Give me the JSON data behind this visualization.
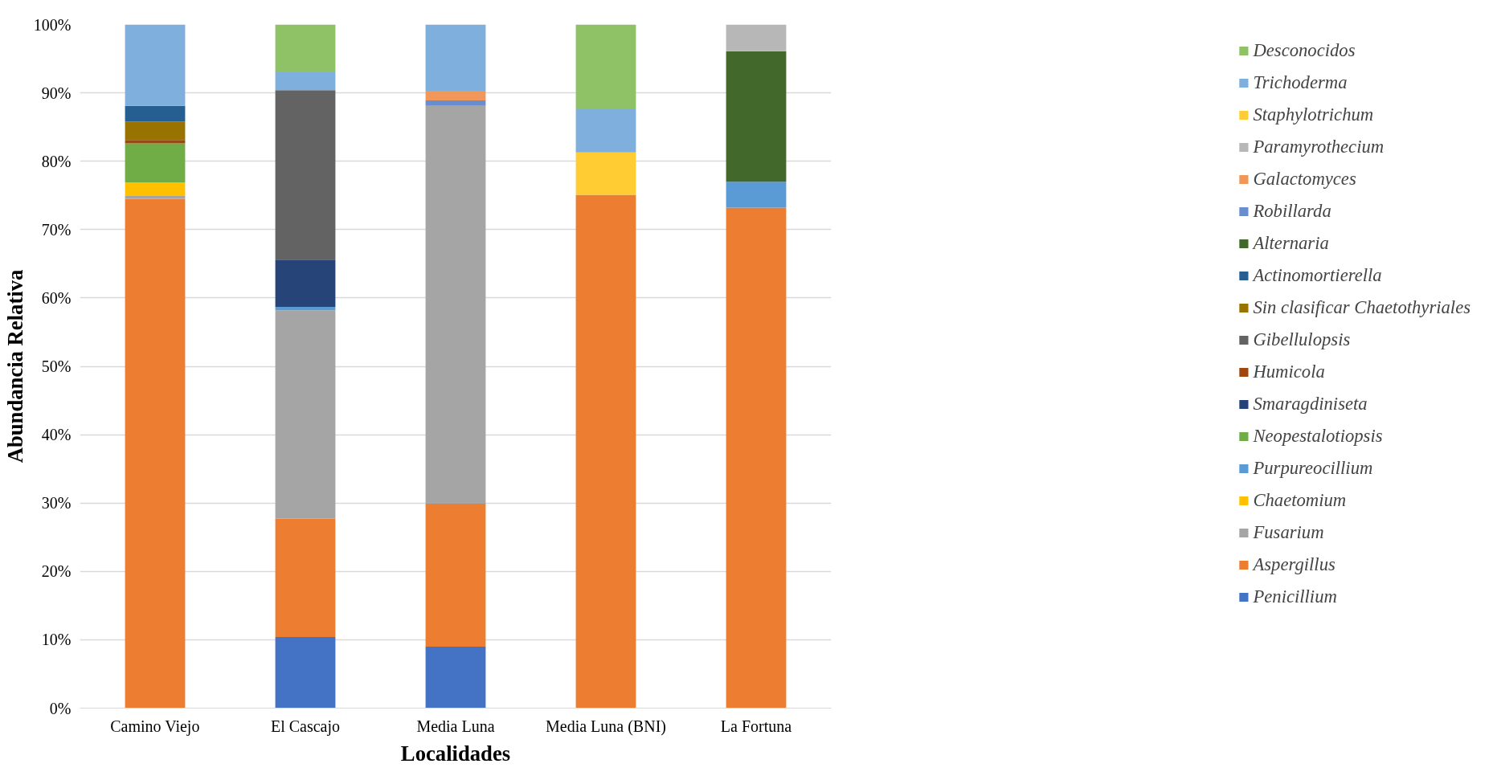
{
  "chart_data": {
    "type": "bar",
    "stacked": true,
    "xlabel": "Localidades",
    "ylabel": "Abundancia Relativa",
    "categories": [
      "Camino Viejo",
      "El Cascajo",
      "Media Luna",
      "Media Luna (BNI)",
      "La Fortuna"
    ],
    "ylim": [
      0,
      100
    ],
    "yticks": [
      {
        "value": 0,
        "label": "0%"
      },
      {
        "value": 10,
        "label": "10%"
      },
      {
        "value": 20,
        "label": "20%"
      },
      {
        "value": 30,
        "label": "30%"
      },
      {
        "value": 40,
        "label": "40%"
      },
      {
        "value": 50,
        "label": "50%"
      },
      {
        "value": 60,
        "label": "60%"
      },
      {
        "value": 70,
        "label": "70%"
      },
      {
        "value": 80,
        "label": "80%"
      },
      {
        "value": 90,
        "label": "90%"
      },
      {
        "value": 100,
        "label": "100%"
      }
    ],
    "grid": "y",
    "legend": "right",
    "series": [
      {
        "name": "Penicillium",
        "color": "#4472c4",
        "values": [
          null,
          10.4,
          9.0,
          null,
          null
        ]
      },
      {
        "name": "Aspergillus",
        "color": "#ed7d31",
        "values": [
          74.5,
          17.3,
          20.9,
          75.1,
          73.2
        ]
      },
      {
        "name": "Fusarium",
        "color": "#a5a5a5",
        "values": [
          0.4,
          30.5,
          58.2,
          null,
          null
        ]
      },
      {
        "name": "Chaetomium",
        "color": "#ffc000",
        "values": [
          2.0,
          null,
          null,
          null,
          null
        ]
      },
      {
        "name": "Purpureocillium",
        "color": "#5b9bd5",
        "values": [
          null,
          0.5,
          null,
          null,
          3.8
        ]
      },
      {
        "name": "Neopestalotiopsis",
        "color": "#70ad47",
        "values": [
          5.7,
          null,
          null,
          null,
          null
        ]
      },
      {
        "name": "Smaragdiniseta",
        "color": "#264478",
        "values": [
          null,
          6.9,
          null,
          null,
          null
        ]
      },
      {
        "name": "Humicola",
        "color": "#9e480e",
        "values": [
          0.5,
          null,
          null,
          null,
          null
        ]
      },
      {
        "name": "Gibellulopsis",
        "color": "#636363",
        "values": [
          null,
          24.8,
          null,
          null,
          null
        ]
      },
      {
        "name": "Sin clasificar Chaetothyriales",
        "color": "#997300",
        "values": [
          2.7,
          null,
          null,
          null,
          null
        ]
      },
      {
        "name": "Actinomortierella",
        "color": "#255e91",
        "values": [
          2.3,
          null,
          null,
          null,
          null
        ]
      },
      {
        "name": "Alternaria",
        "color": "#43682b",
        "values": [
          null,
          null,
          null,
          null,
          19.1
        ]
      },
      {
        "name": "Robillarda",
        "color": "#698ed0",
        "values": [
          null,
          null,
          0.8,
          null,
          null
        ]
      },
      {
        "name": "Galactomyces",
        "color": "#f1975a",
        "values": [
          null,
          null,
          1.4,
          null,
          null
        ]
      },
      {
        "name": "Paramyrothecium",
        "color": "#b7b7b7",
        "values": [
          null,
          null,
          null,
          null,
          3.9
        ]
      },
      {
        "name": "Staphylotrichum",
        "color": "#ffcd33",
        "values": [
          null,
          null,
          null,
          6.2,
          null
        ]
      },
      {
        "name": "Trichoderma",
        "color": "#7eafdd",
        "values": [
          11.9,
          2.6,
          9.7,
          6.3,
          null
        ]
      },
      {
        "name": "Desconocidos",
        "color": "#8fc167",
        "values": [
          null,
          7.0,
          null,
          12.4,
          null
        ]
      }
    ]
  }
}
